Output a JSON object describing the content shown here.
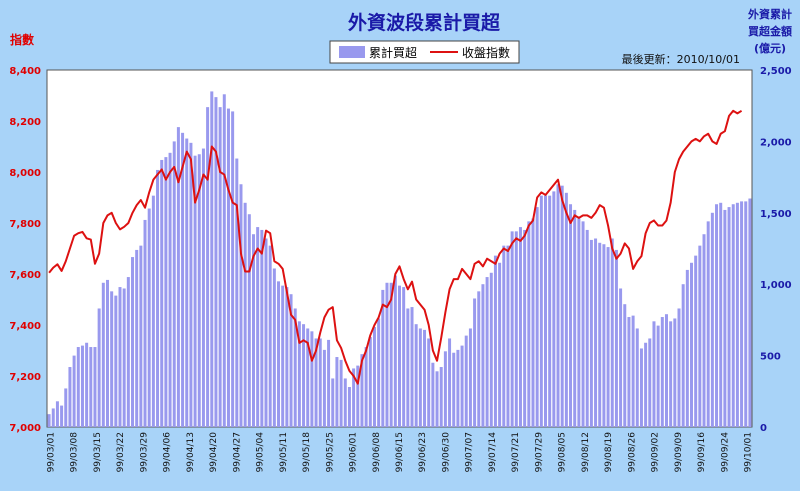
{
  "chart_data": {
    "type": "bar",
    "title": "外資波段累計買超",
    "y_left_label": "指數",
    "y_right_label_lines": [
      "外資累計",
      "買超金額",
      "(億元)"
    ],
    "update_text": "最後更新：2010/10/01",
    "y_left_ticks": [
      "8,400",
      "8,200",
      "8,000",
      "7,800",
      "7,600",
      "7,400",
      "7,200",
      "7,000"
    ],
    "y_right_ticks": [
      "2,500",
      "2,000",
      "1,500",
      "1,000",
      "500",
      "0"
    ],
    "y_left_range": [
      7000,
      8400
    ],
    "y_right_range": [
      0,
      2500
    ],
    "x_tick_labels": [
      "99/03/01",
      "99/03/08",
      "99/03/15",
      "99/03/22",
      "99/03/29",
      "99/04/06",
      "99/04/13",
      "99/04/20",
      "99/04/27",
      "99/05/04",
      "99/05/11",
      "99/05/18",
      "99/05/25",
      "99/06/01",
      "99/06/08",
      "99/06/15",
      "99/06/23",
      "99/06/30",
      "99/07/07",
      "99/07/14",
      "99/07/21",
      "99/07/29",
      "99/08/05",
      "99/08/12",
      "99/08/19",
      "99/08/26",
      "99/09/02",
      "99/09/09",
      "99/09/16",
      "99/09/24",
      "99/10/01"
    ],
    "series": [
      {
        "name": "累計買超",
        "axis": "right",
        "color": "#9999ee",
        "values": [
          90,
          130,
          180,
          150,
          270,
          420,
          500,
          560,
          570,
          590,
          560,
          560,
          830,
          1010,
          1030,
          950,
          920,
          980,
          970,
          1050,
          1190,
          1240,
          1270,
          1450,
          1530,
          1620,
          1800,
          1870,
          1890,
          1920,
          2000,
          2100,
          2060,
          2020,
          1990,
          1900,
          1910,
          1950,
          2240,
          2350,
          2310,
          2240,
          2330,
          2230,
          2210,
          1880,
          1700,
          1570,
          1490,
          1350,
          1400,
          1380,
          1320,
          1270,
          1110,
          1020,
          990,
          980,
          930,
          830,
          740,
          720,
          690,
          670,
          620,
          620,
          540,
          610,
          340,
          490,
          470,
          340,
          280,
          410,
          430,
          510,
          560,
          630,
          700,
          760,
          960,
          1010,
          1010,
          1060,
          990,
          980,
          830,
          840,
          720,
          690,
          680,
          620,
          450,
          390,
          420,
          530,
          620,
          520,
          540,
          570,
          640,
          690,
          900,
          950,
          1000,
          1050,
          1080,
          1200,
          1150,
          1270,
          1270,
          1370,
          1370,
          1400,
          1380,
          1440,
          1460,
          1540,
          1620,
          1620,
          1620,
          1650,
          1700,
          1690,
          1640,
          1560,
          1520,
          1460,
          1440,
          1380,
          1310,
          1320,
          1290,
          1280,
          1260,
          1320,
          1240,
          970,
          860,
          770,
          780,
          690,
          550,
          590,
          620,
          740,
          710,
          770,
          790,
          740,
          760,
          830,
          1000,
          1100,
          1150,
          1200,
          1270,
          1350,
          1440,
          1500,
          1560,
          1570,
          1520,
          1540,
          1560,
          1570,
          1580,
          1580,
          1600
        ]
      },
      {
        "name": "收盤指數",
        "axis": "left",
        "color": "#dd1111",
        "values": [
          7605,
          7625,
          7638,
          7612,
          7650,
          7700,
          7750,
          7760,
          7765,
          7740,
          7735,
          7640,
          7680,
          7800,
          7830,
          7840,
          7800,
          7775,
          7785,
          7800,
          7840,
          7870,
          7890,
          7860,
          7920,
          7970,
          7990,
          8010,
          7970,
          8000,
          8020,
          7960,
          8020,
          8080,
          8050,
          7880,
          7930,
          7990,
          7970,
          8100,
          8080,
          8000,
          7990,
          7930,
          7880,
          7870,
          7680,
          7610,
          7610,
          7670,
          7700,
          7680,
          7770,
          7760,
          7650,
          7640,
          7620,
          7530,
          7440,
          7420,
          7330,
          7340,
          7330,
          7260,
          7300,
          7370,
          7430,
          7460,
          7470,
          7340,
          7310,
          7260,
          7220,
          7200,
          7170,
          7260,
          7300,
          7360,
          7400,
          7430,
          7480,
          7470,
          7500,
          7600,
          7630,
          7580,
          7540,
          7570,
          7500,
          7480,
          7460,
          7400,
          7300,
          7260,
          7350,
          7450,
          7540,
          7580,
          7580,
          7620,
          7600,
          7580,
          7640,
          7650,
          7630,
          7660,
          7650,
          7640,
          7680,
          7700,
          7690,
          7720,
          7740,
          7730,
          7750,
          7790,
          7810,
          7900,
          7920,
          7910,
          7930,
          7950,
          7970,
          7890,
          7840,
          7800,
          7830,
          7820,
          7830,
          7830,
          7820,
          7840,
          7870,
          7860,
          7790,
          7700,
          7660,
          7680,
          7720,
          7700,
          7620,
          7650,
          7670,
          7760,
          7800,
          7810,
          7790,
          7790,
          7810,
          7880,
          8000,
          8050,
          8080,
          8100,
          8120,
          8130,
          8120,
          8140,
          8150,
          8120,
          8110,
          8150,
          8160,
          8220,
          8240,
          8230,
          8240
        ]
      }
    ]
  }
}
